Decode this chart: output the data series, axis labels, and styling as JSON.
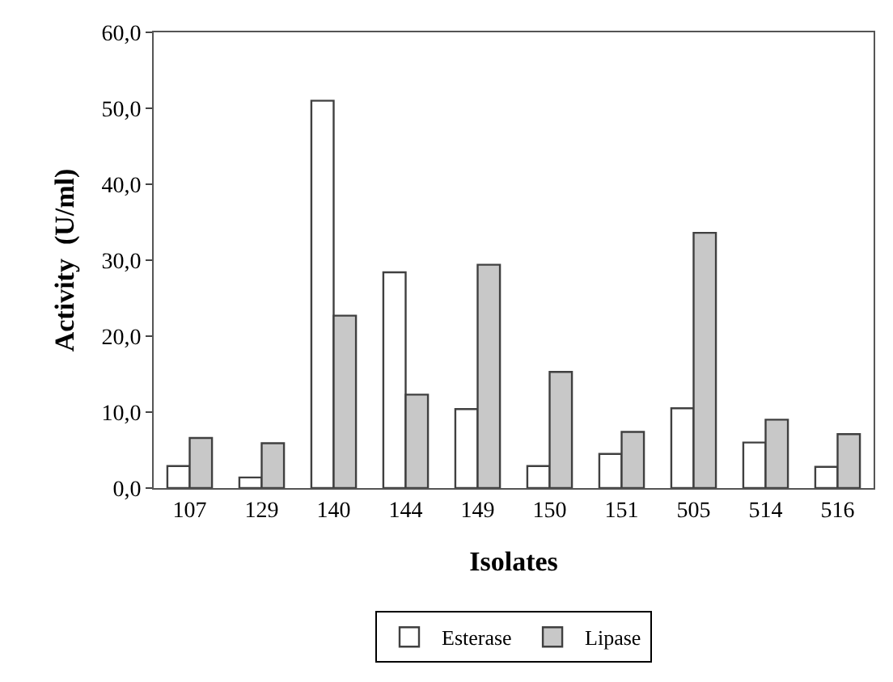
{
  "chart_data": {
    "type": "bar",
    "xlabel": "Isolates",
    "ylabel": "Activity  (U/ml)",
    "categories": [
      "107",
      "129",
      "140",
      "144",
      "149",
      "150",
      "151",
      "505",
      "514",
      "516"
    ],
    "series": [
      {
        "name": "Esterase",
        "color": "#ffffff",
        "values": [
          2.9,
          1.4,
          51.0,
          28.4,
          10.4,
          2.9,
          4.5,
          10.5,
          6.0,
          2.8
        ]
      },
      {
        "name": "Lipase",
        "color": "#c8c8c8",
        "values": [
          6.6,
          5.9,
          22.7,
          12.3,
          29.4,
          15.3,
          7.4,
          33.6,
          9.0,
          7.1
        ]
      }
    ],
    "ylim": [
      0,
      60
    ],
    "yticks": [
      {
        "value": 0,
        "label": "0,0"
      },
      {
        "value": 10,
        "label": "10,0"
      },
      {
        "value": 20,
        "label": "20,0"
      },
      {
        "value": 30,
        "label": "30,0"
      },
      {
        "value": 40,
        "label": "40,0"
      },
      {
        "value": 50,
        "label": "50,0"
      },
      {
        "value": 60,
        "label": "60,0"
      }
    ],
    "grid": false,
    "legend": "bottom"
  }
}
